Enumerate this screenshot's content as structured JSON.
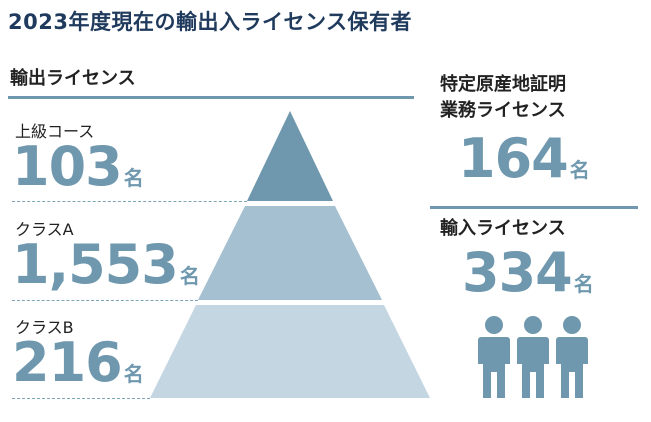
{
  "title": "2023年度現在の輸出入ライセンス保有者",
  "export": {
    "heading": "輸出ライセンス",
    "tiers": [
      {
        "label": "上級コース",
        "value": "103",
        "unit": "名"
      },
      {
        "label": "クラスA",
        "value": "1,553",
        "unit": "名"
      },
      {
        "label": "クラスB",
        "value": "216",
        "unit": "名"
      }
    ]
  },
  "certificate": {
    "heading_line1": "特定原産地証明",
    "heading_line2": "業務ライセンス",
    "value": "164",
    "unit": "名"
  },
  "import": {
    "heading": "輸入ライセンス",
    "value": "334",
    "unit": "名"
  },
  "icons": [
    "person-icon",
    "person-icon",
    "person-icon"
  ],
  "colors": {
    "title": "#1f3a5c",
    "accent": "#6f98ae",
    "pyramid_top": "#6f98ae",
    "pyramid_middle": "#a4c0d1",
    "pyramid_bottom": "#c3d6e2",
    "person": "#6f98ae"
  }
}
